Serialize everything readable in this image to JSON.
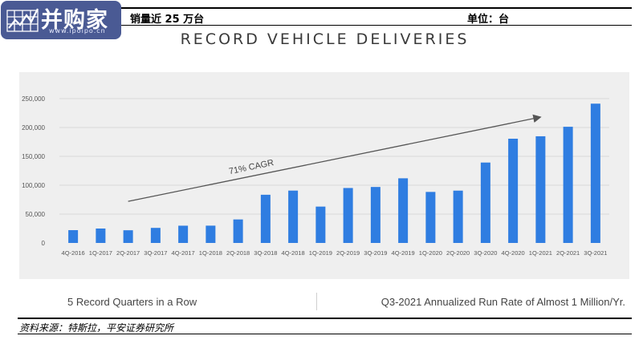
{
  "caption": {
    "title": "销量近 25 万台",
    "unit": "单位：台"
  },
  "logo": {
    "text": "并购家",
    "url": "www.ipoipo.cn"
  },
  "chart_data": {
    "type": "bar",
    "title": "RECORD VEHICLE DELIVERIES",
    "xlabel": "",
    "ylabel": "",
    "categories": [
      "4Q-2016",
      "1Q-2017",
      "2Q-2017",
      "3Q-2017",
      "4Q-2017",
      "1Q-2018",
      "2Q-2018",
      "3Q-2018",
      "4Q-2018",
      "1Q-2019",
      "2Q-2019",
      "3Q-2019",
      "4Q-2019",
      "1Q-2020",
      "2Q-2020",
      "3Q-2020",
      "4Q-2020",
      "1Q-2021",
      "2Q-2021",
      "3Q-2021"
    ],
    "values": [
      22200,
      25000,
      22000,
      26100,
      29900,
      29980,
      40740,
      83500,
      90700,
      63000,
      95200,
      97000,
      112000,
      88400,
      90650,
      139300,
      180570,
      184800,
      201250,
      241300
    ],
    "ylim": [
      0,
      250000
    ],
    "yticks": [
      0,
      50000,
      100000,
      150000,
      200000,
      250000
    ],
    "ytick_labels": [
      "0",
      "50,000",
      "100,000",
      "150,000",
      "200,000",
      "250,000"
    ],
    "grid": true,
    "bar_color": "#2f7de1",
    "annotation": {
      "text": "71% CAGR",
      "arrow_from": {
        "category": "2Q-2017",
        "value": 72000
      },
      "arrow_to": {
        "category": "1Q-2021",
        "value": 218000
      }
    }
  },
  "footer": {
    "left": "5 Record Quarters in a Row",
    "right": "Q3-2021 Annualized Run Rate of Almost 1 Million/Yr."
  },
  "source": "资料来源：特斯拉，平安证券研究所"
}
